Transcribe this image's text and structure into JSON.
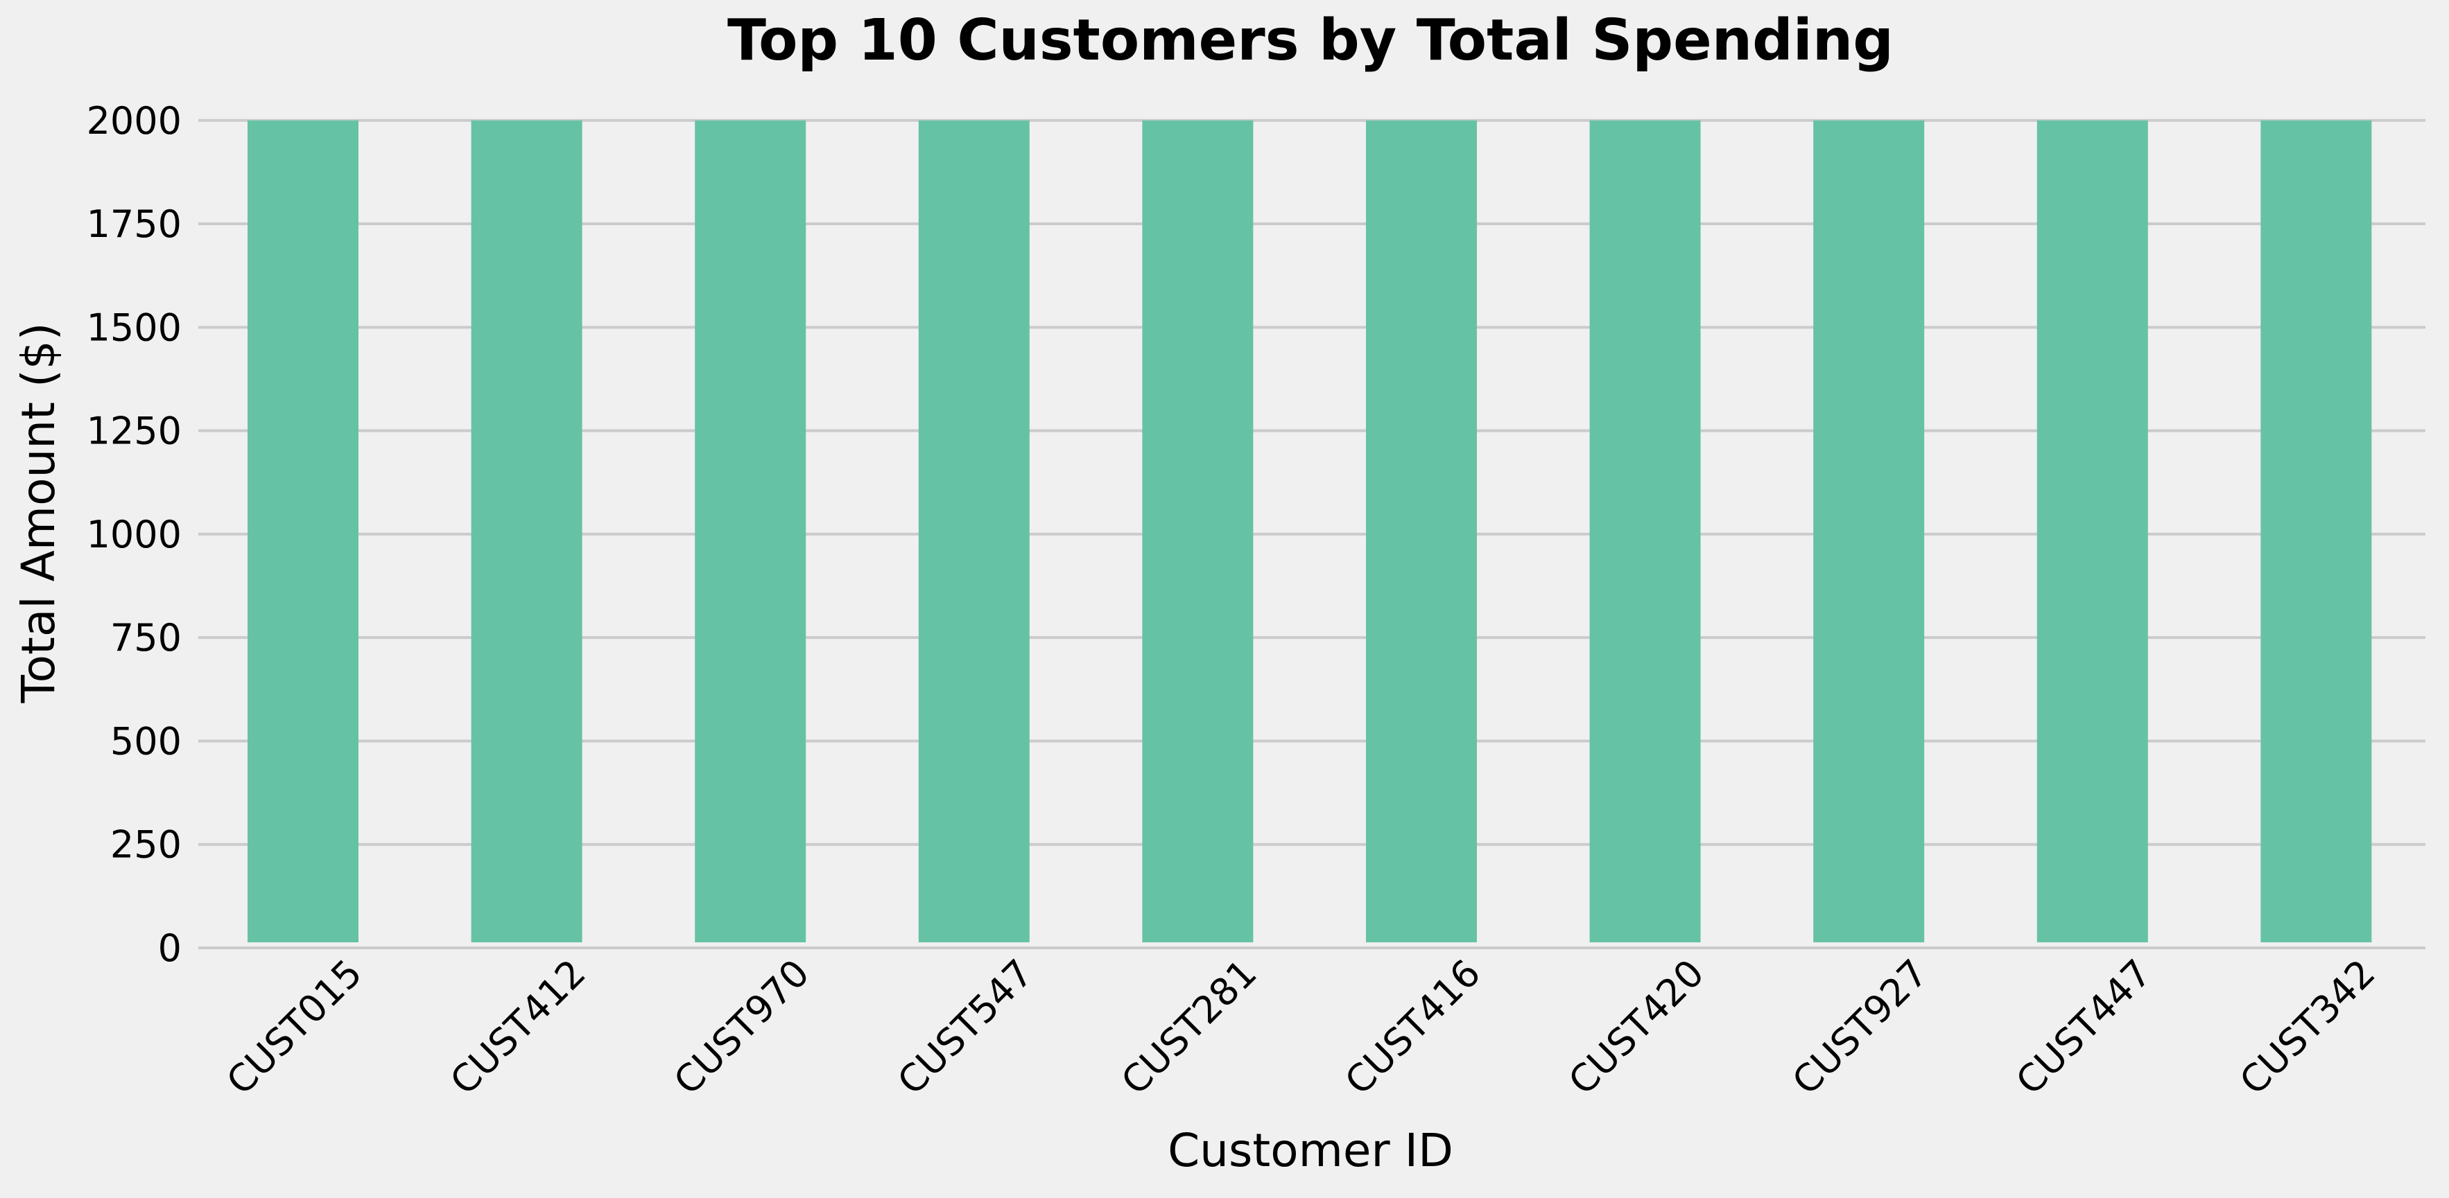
{
  "chart_data": {
    "type": "bar",
    "title": "Top 10 Customers by Total Spending",
    "xlabel": "Customer ID",
    "ylabel": "Total Amount ($)",
    "categories": [
      "CUST015",
      "CUST412",
      "CUST970",
      "CUST547",
      "CUST281",
      "CUST416",
      "CUST420",
      "CUST927",
      "CUST447",
      "CUST342"
    ],
    "values": [
      2000,
      2000,
      2000,
      2000,
      2000,
      2000,
      2000,
      2000,
      2000,
      2000
    ],
    "ylim": [
      0,
      2080
    ],
    "yticks": [
      0,
      250,
      500,
      750,
      1000,
      1250,
      1500,
      1750,
      2000
    ],
    "grid": "horizontal",
    "legend": "none",
    "colors": {
      "bar": "#66c2a5",
      "background": "#f0f0f0",
      "grid": "#cbcbcb",
      "text": "#000000"
    }
  }
}
